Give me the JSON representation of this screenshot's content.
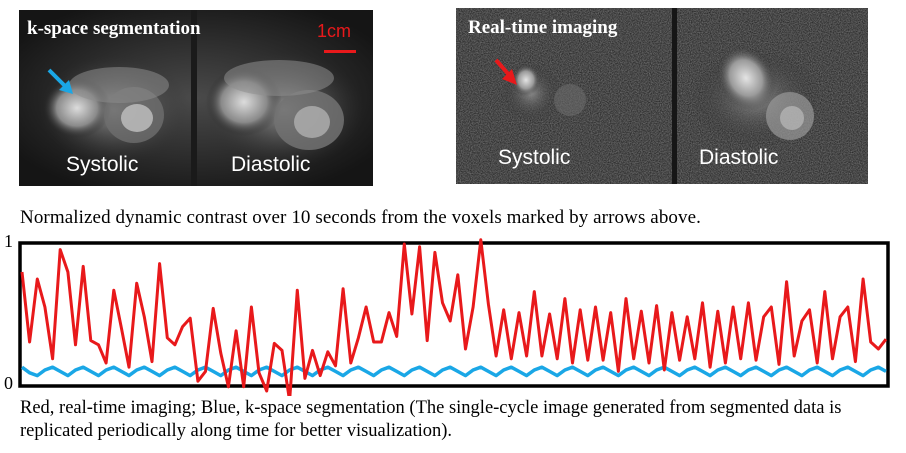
{
  "panels": {
    "kspace": {
      "title": "k-space segmentation",
      "scale_label": "1cm",
      "left_label": "Systolic",
      "right_label": "Diastolic",
      "arrow_color": "#1aa7e6"
    },
    "realtime": {
      "title": "Real-time imaging",
      "left_label": "Systolic",
      "right_label": "Diastolic",
      "arrow_color": "#e8191b"
    }
  },
  "caption_top": "Normalized dynamic contrast over 10 seconds from the voxels marked by arrows above.",
  "caption_bottom": "Red, real-time imaging; Blue, k-space segmentation (The single-cycle image generated from segmented data is replicated periodically along time for better visualization).",
  "chart_data": {
    "type": "line",
    "title": "",
    "xlabel": "",
    "ylabel": "",
    "ylim": [
      0,
      1
    ],
    "yticks": [
      "0",
      "1"
    ],
    "colors": {
      "realtime": "#e8191b",
      "kspace": "#1aa7e6"
    },
    "series": [
      {
        "values": [
          0.8,
          0.3,
          0.75,
          0.55,
          0.18,
          0.96,
          0.8,
          0.28,
          0.84,
          0.31,
          0.28,
          0.15,
          0.67,
          0.4,
          0.12,
          0.72,
          0.48,
          0.16,
          0.86,
          0.33,
          0.28,
          0.41,
          0.47,
          0.02,
          0.09,
          0.54,
          0.22,
          -0.02,
          0.38,
          -0.02,
          0.55,
          0.08,
          -0.05,
          0.29,
          0.24,
          -0.12,
          0.67,
          0.04,
          0.24,
          0.06,
          0.23,
          0.13,
          0.68,
          0.15,
          0.33,
          0.55,
          0.3,
          0.3,
          0.51,
          0.34,
          1.0,
          0.5,
          0.98,
          0.31,
          0.94,
          0.58,
          0.45,
          0.78,
          0.25,
          0.55,
          1.03,
          0.57,
          0.2,
          0.53,
          0.18,
          0.51,
          0.2,
          0.66,
          0.2,
          0.5,
          0.18,
          0.61,
          0.15,
          0.53,
          0.17,
          0.55,
          0.17,
          0.51,
          0.09,
          0.61,
          0.18,
          0.52,
          0.15,
          0.56,
          0.1,
          0.51,
          0.17,
          0.48,
          0.18,
          0.58,
          0.12,
          0.52,
          0.15,
          0.55,
          0.18,
          0.58,
          0.17,
          0.48,
          0.55,
          0.14,
          0.73,
          0.2,
          0.45,
          0.53,
          0.15,
          0.66,
          0.18,
          0.48,
          0.55,
          0.16,
          0.75,
          0.3,
          0.25,
          0.32
        ]
      },
      {
        "values": [
          0.12,
          0.08,
          0.06,
          0.1,
          0.12,
          0.09,
          0.06,
          0.1,
          0.12,
          0.09,
          0.06,
          0.1,
          0.12,
          0.09,
          0.06,
          0.1,
          0.12,
          0.09,
          0.06,
          0.1,
          0.12,
          0.09,
          0.06,
          0.1,
          0.12,
          0.09,
          0.06,
          0.1,
          0.12,
          0.09,
          0.06,
          0.1,
          0.12,
          0.09,
          0.06,
          0.1,
          0.12,
          0.09,
          0.06,
          0.1,
          0.12,
          0.09,
          0.06,
          0.1,
          0.12,
          0.09,
          0.06,
          0.1,
          0.12,
          0.09,
          0.06,
          0.1,
          0.12,
          0.09,
          0.06,
          0.1,
          0.12,
          0.09,
          0.06,
          0.1,
          0.12,
          0.09,
          0.06,
          0.1,
          0.12,
          0.09,
          0.06,
          0.1,
          0.12,
          0.09,
          0.06,
          0.1,
          0.12,
          0.09,
          0.06,
          0.1,
          0.12,
          0.09,
          0.06,
          0.1,
          0.12,
          0.09,
          0.06,
          0.1,
          0.12,
          0.09,
          0.06,
          0.1,
          0.12,
          0.09,
          0.06,
          0.1,
          0.12,
          0.09,
          0.06,
          0.1,
          0.12,
          0.09,
          0.06,
          0.1,
          0.12,
          0.09,
          0.06,
          0.1,
          0.12,
          0.09,
          0.06,
          0.1,
          0.12,
          0.09,
          0.06,
          0.1,
          0.12,
          0.09
        ]
      }
    ]
  }
}
